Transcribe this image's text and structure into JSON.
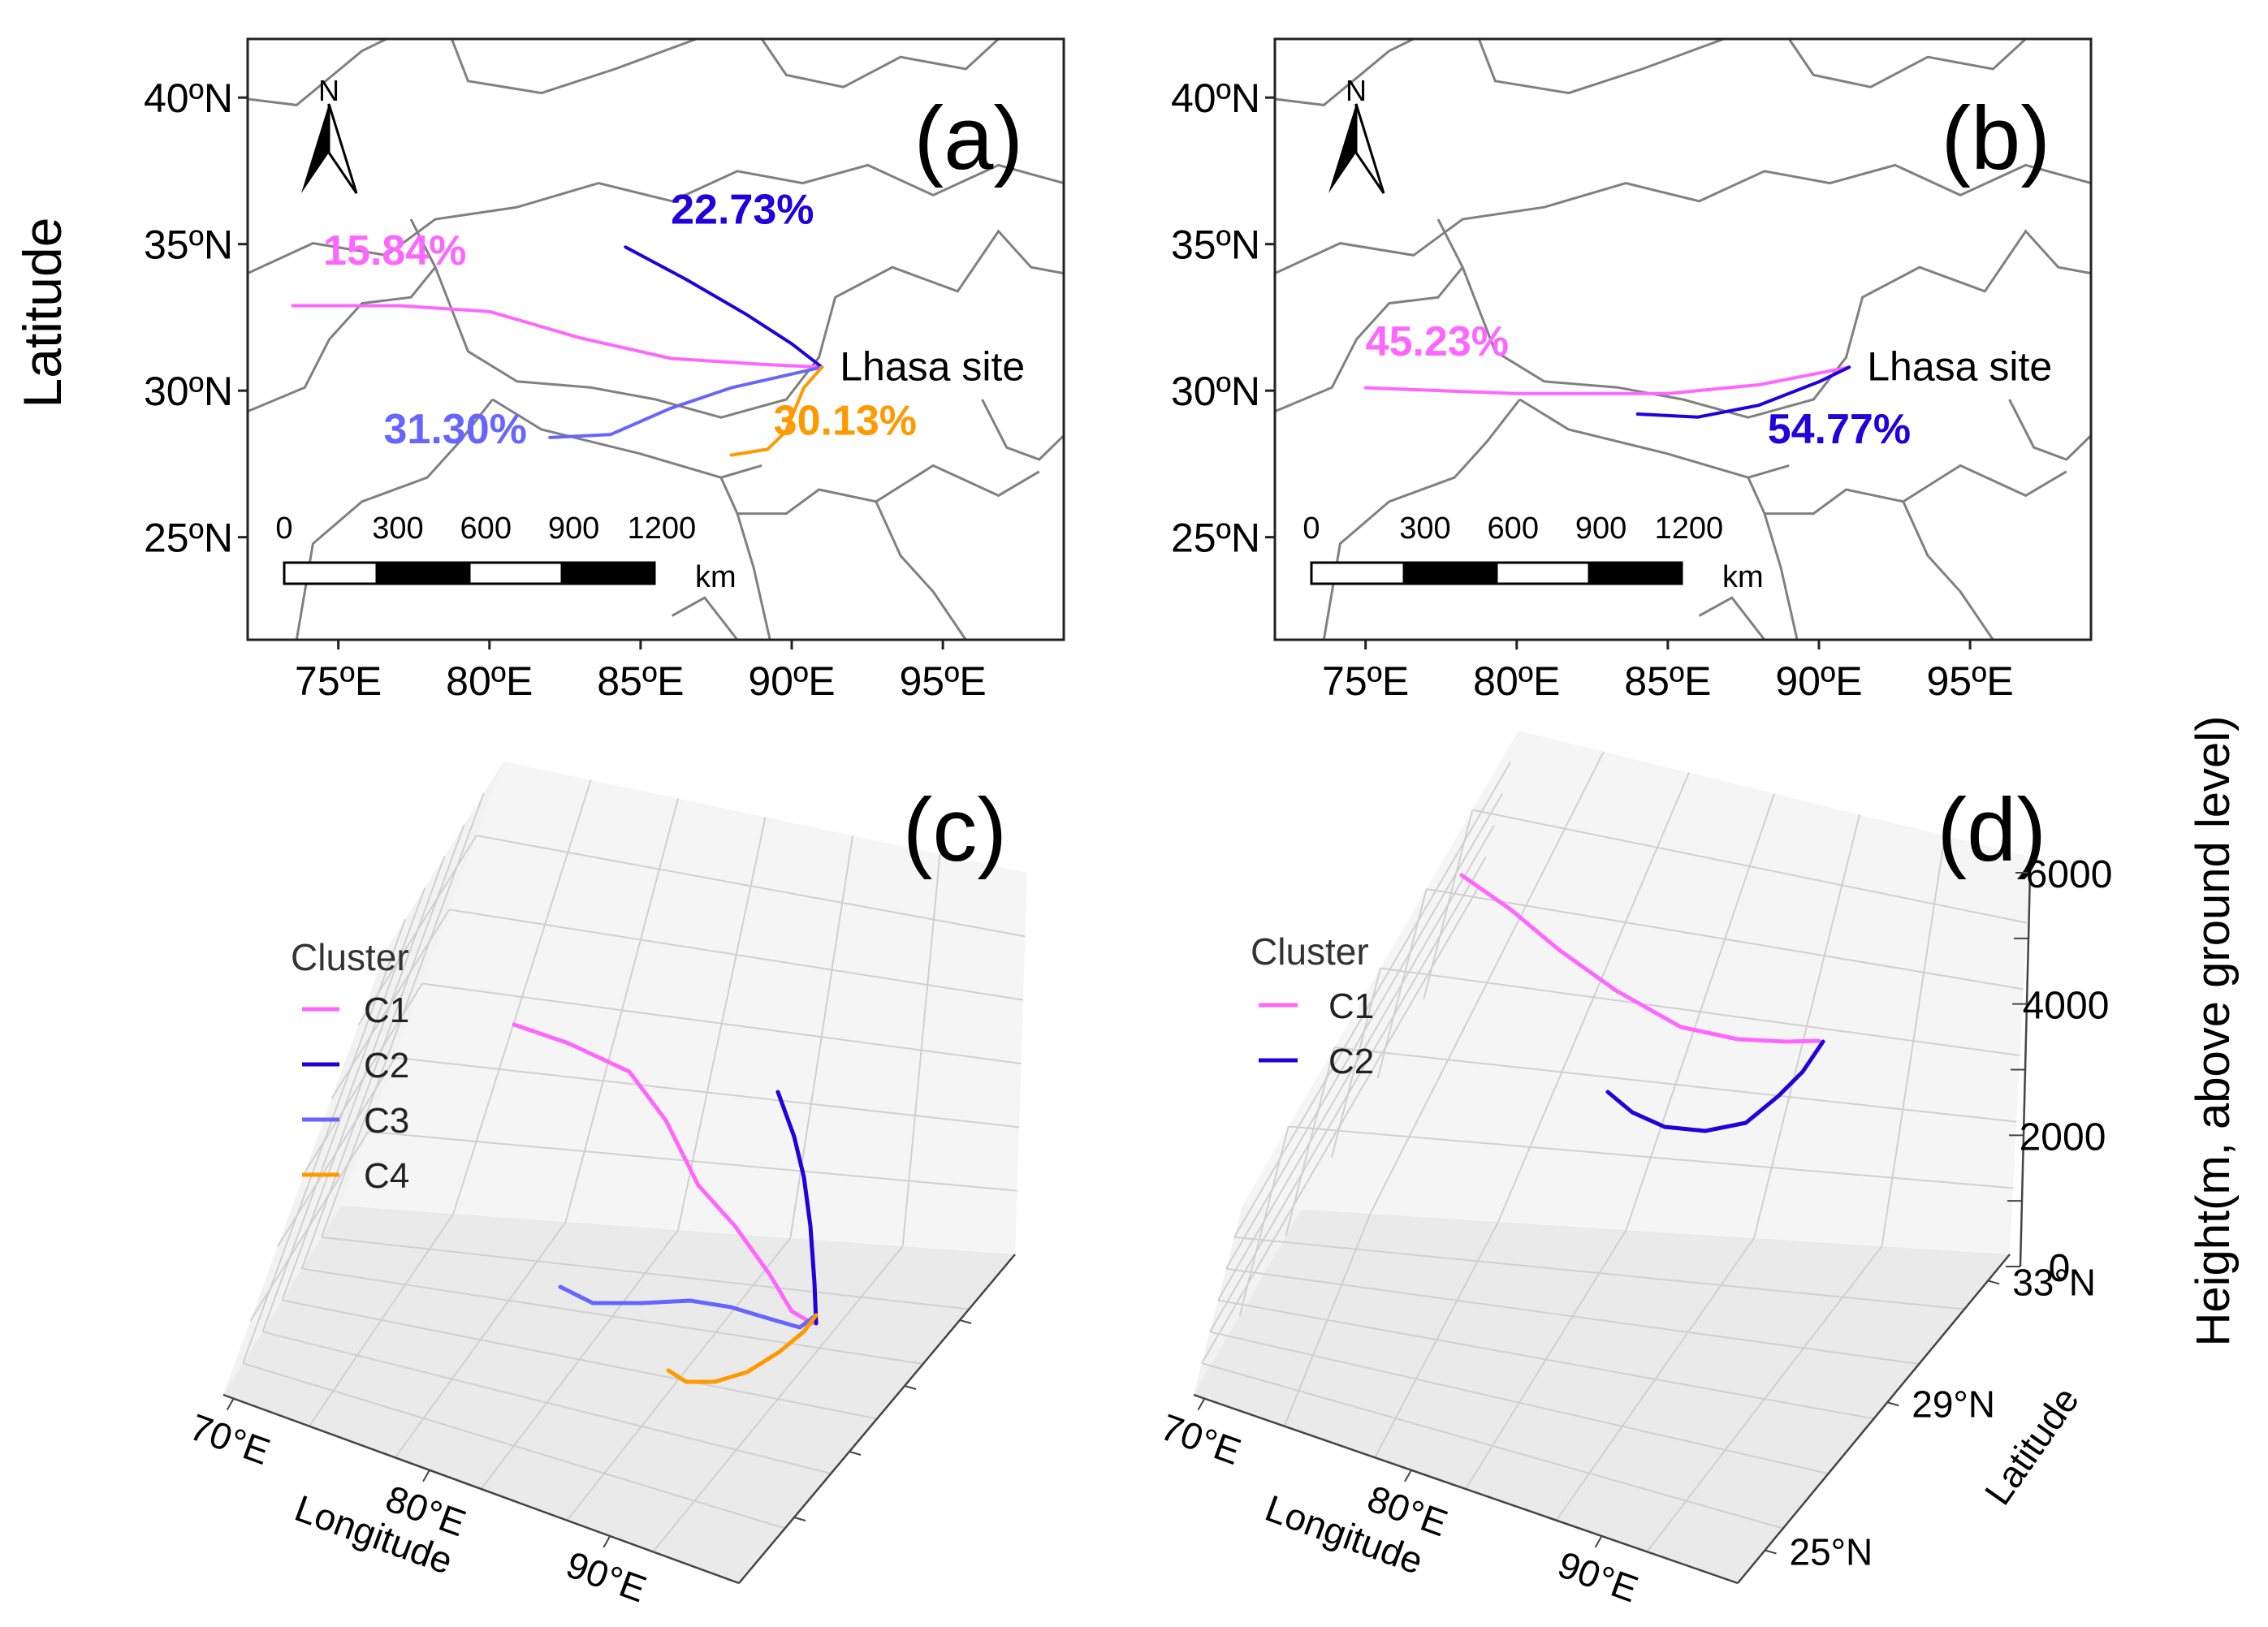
{
  "figure": {
    "y_label_left": "Latitude",
    "z_label_right": "Height(m, above ground level)"
  },
  "colors": {
    "C1": "#ff66ff",
    "C2": "#2200dd",
    "C3": "#6666ff",
    "C4": "#ff9900",
    "border": "#808080",
    "pane": "#f0f0f0",
    "grid": "#d0d0d0"
  },
  "chart_data": [
    {
      "panel": "(a)",
      "type": "line",
      "subtype": "map-trajectories",
      "lon_ticks": [
        "75ºE",
        "80ºE",
        "85ºE",
        "90ºE",
        "95ºE"
      ],
      "lat_ticks": [
        "25ºN",
        "30ºN",
        "35ºN",
        "40ºN"
      ],
      "xlim": [
        72,
        99
      ],
      "ylim": [
        21.5,
        42
      ],
      "north_label": "N",
      "site_label": "Lhasa site",
      "scale_bar": {
        "ticks": [
          "0",
          "300",
          "600",
          "900",
          "1200"
        ],
        "unit": "km"
      },
      "series": [
        {
          "name": "C1",
          "percent": "15.84%",
          "lon": [
            73.5,
            77,
            80,
            83,
            86,
            89,
            91
          ],
          "lat": [
            32.9,
            32.9,
            32.7,
            31.8,
            31.1,
            30.9,
            30.8
          ]
        },
        {
          "name": "C2",
          "percent": "22.73%",
          "lon": [
            84.5,
            86.5,
            88.5,
            90,
            91
          ],
          "lat": [
            34.9,
            33.8,
            32.6,
            31.6,
            30.8
          ]
        },
        {
          "name": "C3",
          "percent": "31.30%",
          "lon": [
            82,
            84,
            86,
            88,
            91
          ],
          "lat": [
            28.4,
            28.5,
            29.4,
            30.1,
            30.8
          ]
        },
        {
          "name": "C4",
          "percent": "30.13%",
          "lon": [
            88,
            89.2,
            89.8,
            90.4,
            91
          ],
          "lat": [
            27.8,
            28.0,
            28.6,
            30.1,
            30.8
          ]
        }
      ]
    },
    {
      "panel": "(b)",
      "type": "line",
      "subtype": "map-trajectories",
      "lon_ticks": [
        "75ºE",
        "80ºE",
        "85ºE",
        "90ºE",
        "95ºE"
      ],
      "lat_ticks": [
        "25ºN",
        "30ºN",
        "35ºN",
        "40ºN"
      ],
      "xlim": [
        72,
        99
      ],
      "ylim": [
        21.5,
        42
      ],
      "north_label": "N",
      "site_label": "Lhasa site",
      "scale_bar": {
        "ticks": [
          "0",
          "300",
          "600",
          "900",
          "1200"
        ],
        "unit": "km"
      },
      "series": [
        {
          "name": "C1",
          "percent": "45.23%",
          "lon": [
            75,
            80,
            85,
            88,
            91
          ],
          "lat": [
            30.1,
            29.9,
            29.9,
            30.2,
            30.8
          ]
        },
        {
          "name": "C2",
          "percent": "54.77%",
          "lon": [
            84,
            86,
            88,
            90,
            91
          ],
          "lat": [
            29.2,
            29.1,
            29.5,
            30.3,
            30.8
          ]
        }
      ]
    },
    {
      "panel": "(c)",
      "type": "line",
      "subtype": "3d-trajectories",
      "legend_title": "Cluster",
      "x_ticks": [
        "70°E",
        "80°E",
        "90°E"
      ],
      "xlabel": "Longitude",
      "series": [
        {
          "name": "C1"
        },
        {
          "name": "C2"
        },
        {
          "name": "C3"
        },
        {
          "name": "C4"
        }
      ]
    },
    {
      "panel": "(d)",
      "type": "line",
      "subtype": "3d-trajectories",
      "legend_title": "Cluster",
      "x_ticks": [
        "70°E",
        "80°E",
        "90°E"
      ],
      "xlabel": "Longitude",
      "y_ticks": [
        "25°N",
        "29°N",
        "33°N"
      ],
      "ylabel": "Latitude",
      "z_ticks": [
        "0",
        "2000",
        "4000",
        "6000"
      ],
      "zlim": [
        0,
        6000
      ],
      "series": [
        {
          "name": "C1"
        },
        {
          "name": "C2"
        }
      ]
    }
  ]
}
